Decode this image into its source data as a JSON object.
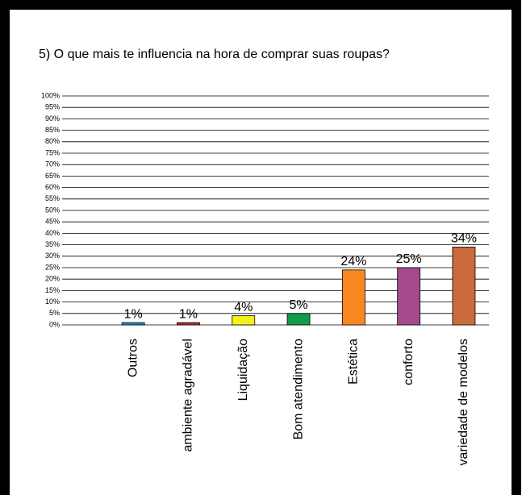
{
  "chart_data": {
    "type": "bar",
    "title": "5) O que mais te influencia na hora de comprar suas roupas?",
    "categories": [
      "Outros",
      "ambiente agradável",
      "Liquidação",
      "Bom atendimento",
      "Estética",
      "conforto",
      "variedade de modelos"
    ],
    "values": [
      1,
      1,
      4,
      5,
      24,
      25,
      34
    ],
    "value_labels": [
      "1%",
      "1%",
      "4%",
      "5%",
      "24%",
      "25%",
      "34%"
    ],
    "colors": [
      "#1f8fc8",
      "#c0282d",
      "#f5f018",
      "#119a48",
      "#f7871e",
      "#a54a8e",
      "#cb6a3a"
    ],
    "ylim": [
      0,
      100
    ],
    "yticks": [
      {
        "value": 0,
        "label": "0%"
      },
      {
        "value": 5,
        "label": "5%"
      },
      {
        "value": 10,
        "label": "10%"
      },
      {
        "value": 15,
        "label": "15%"
      },
      {
        "value": 20,
        "label": "20%"
      },
      {
        "value": 25,
        "label": "25%"
      },
      {
        "value": 30,
        "label": "30%"
      },
      {
        "value": 35,
        "label": "35%"
      },
      {
        "value": 40,
        "label": "40%"
      },
      {
        "value": 45,
        "label": "45%"
      },
      {
        "value": 50,
        "label": "50%"
      },
      {
        "value": 55,
        "label": "55%"
      },
      {
        "value": 60,
        "label": "60%"
      },
      {
        "value": 65,
        "label": "65%"
      },
      {
        "value": 70,
        "label": "70%"
      },
      {
        "value": 75,
        "label": "75%"
      },
      {
        "value": 80,
        "label": "80%"
      },
      {
        "value": 85,
        "label": "85%"
      },
      {
        "value": 90,
        "label": "90%"
      },
      {
        "value": 95,
        "label": "95%"
      },
      {
        "value": 100,
        "label": "100%"
      }
    ],
    "grid": true
  }
}
